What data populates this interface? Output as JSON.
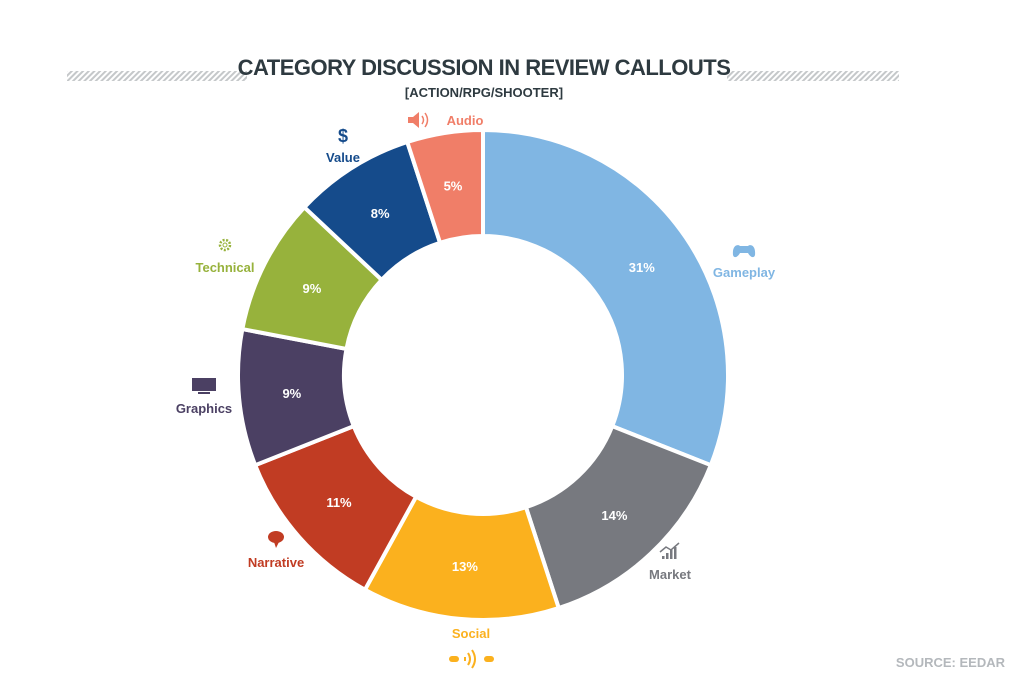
{
  "chart_data": {
    "type": "pie",
    "variant": "donut",
    "title": "CATEGORY DISCUSSION IN REVIEW CALLOUTS",
    "subtitle": "[ACTION/RPG/SHOOTER]",
    "source": "SOURCE: EEDAR",
    "unit": "%",
    "slices": [
      {
        "label": "Gameplay",
        "value": 31,
        "display": "31%",
        "color": "#80b6e3",
        "icon": "gamepad-icon"
      },
      {
        "label": "Market",
        "value": 14,
        "display": "14%",
        "color": "#77797f",
        "icon": "bar-chart-trend-icon"
      },
      {
        "label": "Social",
        "value": 13,
        "display": "13%",
        "color": "#fbb11e",
        "icon": "social-broadcast-icon"
      },
      {
        "label": "Narrative",
        "value": 11,
        "display": "11%",
        "color": "#c13c23",
        "icon": "speech-bubble-icon"
      },
      {
        "label": "Graphics",
        "value": 9,
        "display": "9%",
        "color": "#4b4063",
        "icon": "monitor-icon"
      },
      {
        "label": "Technical",
        "value": 9,
        "display": "9%",
        "color": "#97b23c",
        "icon": "gear-icon"
      },
      {
        "label": "Value",
        "value": 8,
        "display": "8%",
        "color": "#154b8b",
        "icon": "dollar-icon"
      },
      {
        "label": "Audio",
        "value": 5,
        "display": "5%",
        "color": "#f07e68",
        "icon": "speaker-icon"
      }
    ]
  }
}
